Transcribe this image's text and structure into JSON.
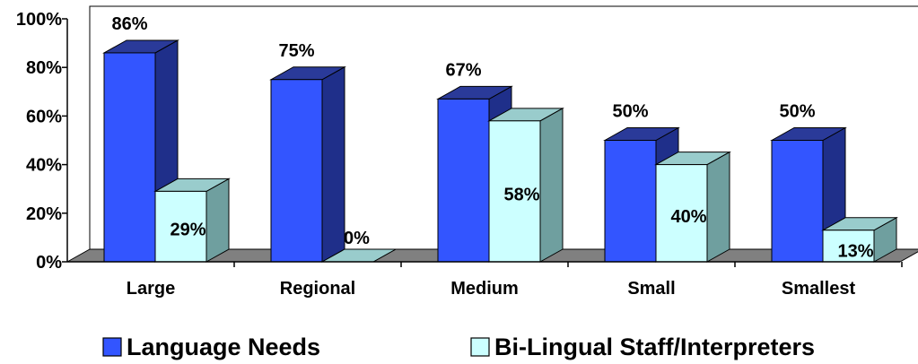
{
  "chart_data": {
    "type": "bar",
    "categories": [
      "Large",
      "Regional",
      "Medium",
      "Small",
      "Smallest"
    ],
    "series": [
      {
        "name": "Language Needs",
        "values": [
          86,
          75,
          67,
          50,
          50
        ],
        "labels": [
          "86%",
          "75%",
          "67%",
          "50%",
          "50%"
        ],
        "color": "#3355ff"
      },
      {
        "name": "Bi-Lingual Staff/Interpreters",
        "values": [
          29,
          0,
          58,
          40,
          13
        ],
        "labels": [
          "29%",
          "0%",
          "58%",
          "40%",
          "13%"
        ],
        "color": "#ccffff"
      }
    ],
    "yticks": [
      "0%",
      "20%",
      "40%",
      "60%",
      "80%",
      "100%"
    ],
    "ylim": [
      0,
      100
    ],
    "title": "",
    "xlabel": "",
    "ylabel": "",
    "grid": false,
    "legend_position": "bottom",
    "style": "3d-clustered-column"
  }
}
